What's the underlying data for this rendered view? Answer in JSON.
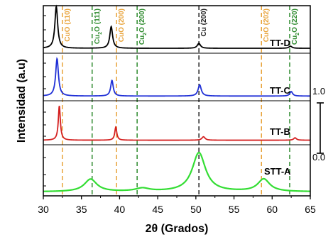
{
  "chart_data": {
    "type": "line",
    "title": "",
    "xlabel": "2θ (Grados)",
    "ylabel": "Intensidad (a.u)",
    "xlim": [
      30,
      65
    ],
    "x_ticks": [
      30,
      35,
      40,
      45,
      50,
      55,
      60,
      65
    ],
    "grid": false,
    "legend": "none",
    "scale_bar": {
      "top_label": "1.0",
      "bottom_label": "0.0"
    },
    "reference_lines": [
      {
        "label": "CuO (110)",
        "x": 32.5,
        "color": "#e8a33a"
      },
      {
        "label": "Cu2O (111)",
        "text_main": "Cu",
        "text_sub": "2",
        "text_tail": "O (111)",
        "x": 36.4,
        "color": "#2e8b2e"
      },
      {
        "label": "CuO (200)",
        "x": 39.6,
        "color": "#e8a33a"
      },
      {
        "label": "Cu2O (200)",
        "text_main": "Cu",
        "text_sub": "2",
        "text_tail": "O (200)",
        "x": 42.3,
        "color": "#2e8b2e"
      },
      {
        "label": "Cu (200)",
        "x": 50.4,
        "color": "#222222"
      },
      {
        "label": "CuO (202)",
        "x": 58.6,
        "color": "#e8a33a"
      },
      {
        "label": "Cu2O (220)",
        "text_main": "Cu",
        "text_sub": "2",
        "text_tail": "O (220)",
        "x": 62.3,
        "color": "#2e8b2e"
      }
    ],
    "series": [
      {
        "name": "TT-D",
        "color": "#000000",
        "baseline": 0.05,
        "peaks": [
          {
            "x": 31.7,
            "height": 1.0,
            "width": 0.22
          },
          {
            "x": 38.9,
            "height": 0.52,
            "width": 0.22
          },
          {
            "x": 50.4,
            "height": 0.12,
            "width": 0.25
          },
          {
            "x": 62.4,
            "height": 0.05,
            "width": 0.25
          }
        ]
      },
      {
        "name": "TT-C",
        "color": "#1f2fd6",
        "baseline": 0.05,
        "peaks": [
          {
            "x": 31.8,
            "height": 1.0,
            "width": 0.22
          },
          {
            "x": 39.0,
            "height": 0.42,
            "width": 0.2
          },
          {
            "x": 50.5,
            "height": 0.3,
            "width": 0.25
          },
          {
            "x": 62.5,
            "height": 0.12,
            "width": 0.22
          }
        ]
      },
      {
        "name": "TT-B",
        "color": "#d42020",
        "baseline": 0.05,
        "peaks": [
          {
            "x": 32.1,
            "height": 1.0,
            "width": 0.16
          },
          {
            "x": 39.5,
            "height": 0.38,
            "width": 0.16
          },
          {
            "x": 51.0,
            "height": 0.1,
            "width": 0.25
          },
          {
            "x": 63.0,
            "height": 0.07,
            "width": 0.22
          }
        ]
      },
      {
        "name": "STT-A",
        "color": "#33dd33",
        "baseline": 0.03,
        "peaks": [
          {
            "x": 36.2,
            "height": 0.32,
            "width": 1.0
          },
          {
            "x": 43.0,
            "height": 0.08,
            "width": 1.1
          },
          {
            "x": 50.4,
            "height": 1.0,
            "width": 1.05
          },
          {
            "x": 58.9,
            "height": 0.32,
            "width": 0.95
          }
        ]
      }
    ]
  }
}
